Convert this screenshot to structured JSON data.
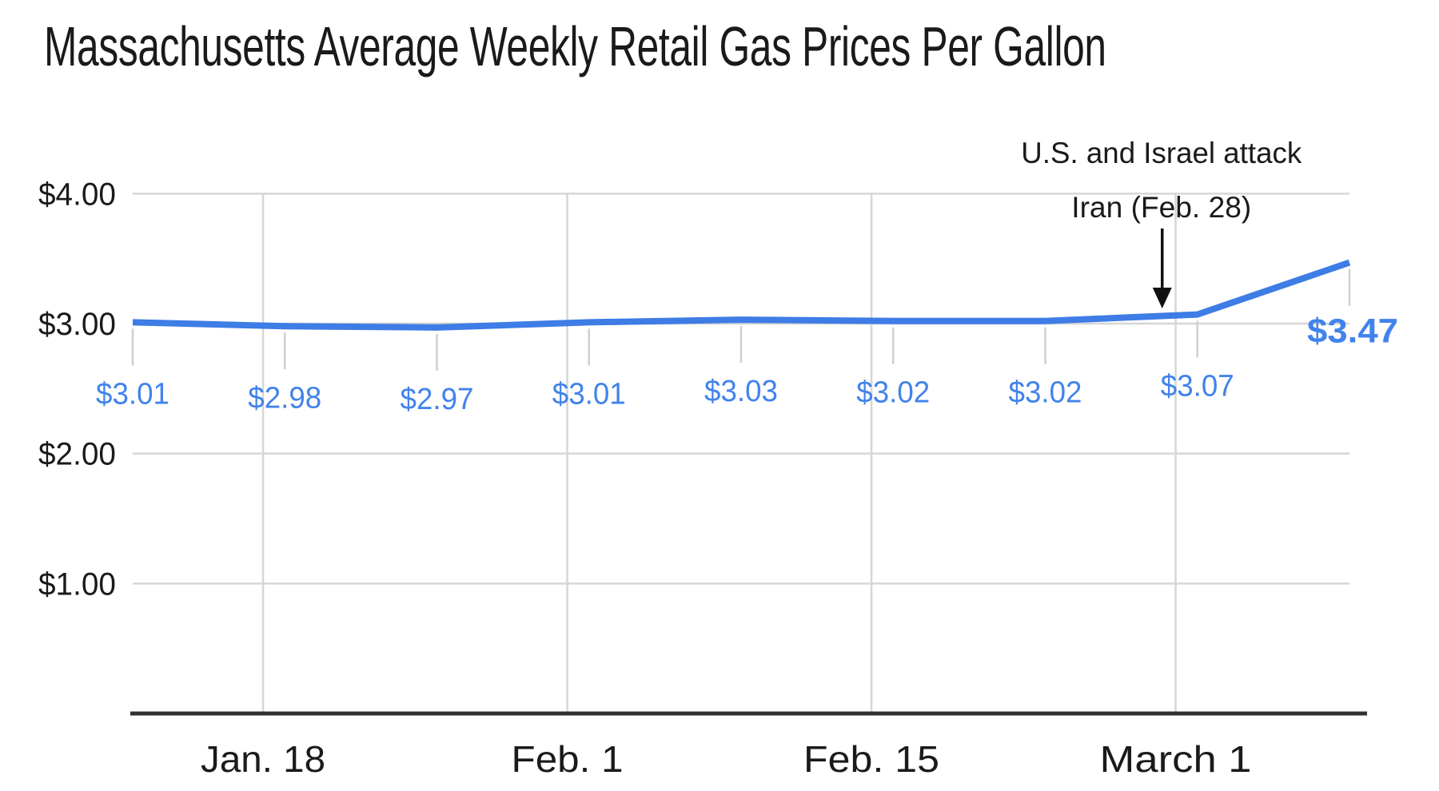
{
  "title": "Massachusetts Average Weekly Retail Gas Prices Per Gallon",
  "chart_data": {
    "type": "line",
    "title": "Massachusetts Average Weekly Retail Gas Prices Per Gallon",
    "x_unit": "weekly observations",
    "values": [
      3.01,
      2.98,
      2.97,
      3.01,
      3.03,
      3.02,
      3.02,
      3.07,
      3.47
    ],
    "point_labels": [
      "$3.01",
      "$2.98",
      "$2.97",
      "$3.01",
      "$3.03",
      "$3.02",
      "$3.02",
      "$3.07",
      "$3.47"
    ],
    "point_day_offsets": [
      0,
      7,
      14,
      21,
      28,
      35,
      42,
      49,
      56
    ],
    "end_label": "$3.47",
    "x_ticks": [
      {
        "label": "Jan. 18",
        "day": 6
      },
      {
        "label": "Feb. 1",
        "day": 20
      },
      {
        "label": "Feb. 15",
        "day": 34
      },
      {
        "label": "March 1",
        "day": 48
      }
    ],
    "y_ticks": [
      {
        "label": "$4.00",
        "value": 4
      },
      {
        "label": "$3.00",
        "value": 3
      },
      {
        "label": "$2.00",
        "value": 2
      },
      {
        "label": "$1.00",
        "value": 1
      }
    ],
    "ylim": [
      0,
      4
    ],
    "grid": true,
    "legend": "none",
    "annotation": {
      "text_line1": "U.S. and Israel attack",
      "text_line2": "Iran (Feb. 28)",
      "points_to_index": 7,
      "points_to_value": 3.07
    }
  },
  "colors": {
    "line": "#3e7ce6",
    "value_labels": "#4183ec",
    "grid": "#d6d6d6",
    "dropline": "#cfcfcf",
    "axis": "#303030",
    "text": "#1a1a1a"
  }
}
